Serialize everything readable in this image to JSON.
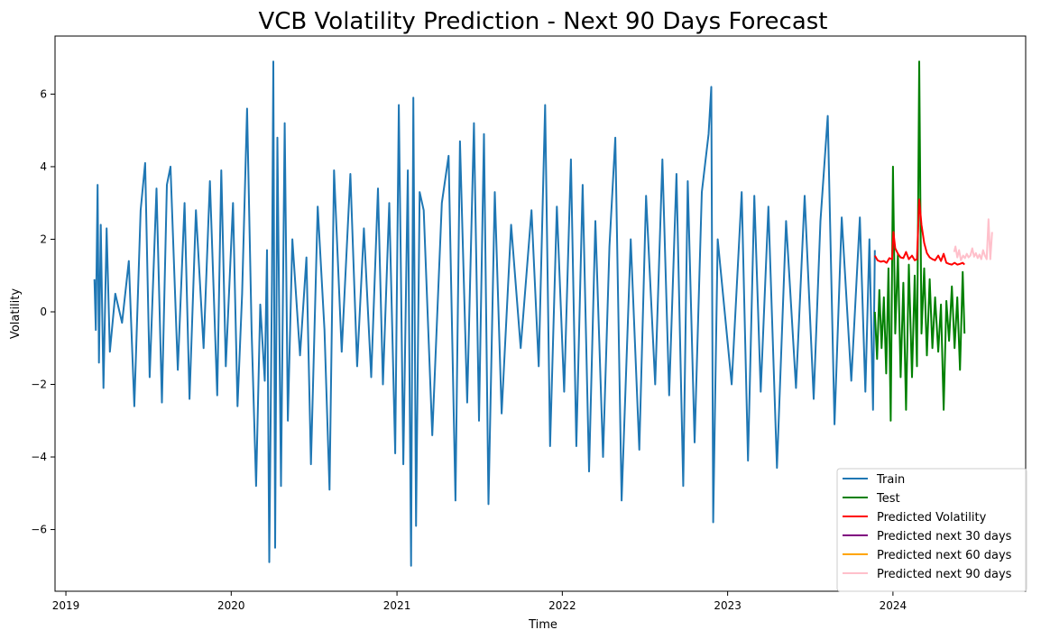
{
  "chart_data": {
    "type": "line",
    "title": "VCB Volatility Prediction - Next 90 Days Forecast",
    "xlabel": "Time",
    "ylabel": "Volatility",
    "xlim": [
      "2018-12-08",
      "2024-10-20"
    ],
    "ylim": [
      -7.7,
      7.6
    ],
    "x_ticks": [
      "2019-01-01",
      "2020-01-01",
      "2021-01-01",
      "2022-01-01",
      "2023-01-01",
      "2024-01-01"
    ],
    "x_tick_labels": [
      "2019",
      "2020",
      "2021",
      "2022",
      "2023",
      "2024"
    ],
    "y_ticks": [
      -6,
      -4,
      -2,
      0,
      2,
      4,
      6
    ],
    "y_tick_labels": [
      "−6",
      "−4",
      "−2",
      "0",
      "2",
      "4",
      "6"
    ],
    "grid": false,
    "legend_position": "lower-right",
    "series": [
      {
        "name": "Train",
        "color": "#1f77b4",
        "points": [
          [
            "2019-03-05",
            0.9
          ],
          [
            "2019-03-08",
            -0.5
          ],
          [
            "2019-03-12",
            3.5
          ],
          [
            "2019-03-15",
            -1.4
          ],
          [
            "2019-03-19",
            2.4
          ],
          [
            "2019-03-25",
            -2.1
          ],
          [
            "2019-04-01",
            2.3
          ],
          [
            "2019-04-08",
            -1.1
          ],
          [
            "2019-04-20",
            0.5
          ],
          [
            "2019-05-05",
            -0.3
          ],
          [
            "2019-05-20",
            1.4
          ],
          [
            "2019-06-01",
            -2.6
          ],
          [
            "2019-06-15",
            2.8
          ],
          [
            "2019-06-25",
            4.1
          ],
          [
            "2019-07-05",
            -1.8
          ],
          [
            "2019-07-20",
            3.4
          ],
          [
            "2019-08-01",
            -2.5
          ],
          [
            "2019-08-12",
            3.5
          ],
          [
            "2019-08-20",
            4.0
          ],
          [
            "2019-09-05",
            -1.6
          ],
          [
            "2019-09-20",
            3.0
          ],
          [
            "2019-10-01",
            -2.4
          ],
          [
            "2019-10-15",
            2.8
          ],
          [
            "2019-11-01",
            -1.0
          ],
          [
            "2019-11-15",
            3.6
          ],
          [
            "2019-12-01",
            -2.3
          ],
          [
            "2019-12-10",
            3.9
          ],
          [
            "2019-12-20",
            -1.5
          ],
          [
            "2020-01-05",
            3.0
          ],
          [
            "2020-01-15",
            -2.6
          ],
          [
            "2020-01-25",
            0.5
          ],
          [
            "2020-02-05",
            5.6
          ],
          [
            "2020-02-15",
            -0.5
          ],
          [
            "2020-02-25",
            -4.8
          ],
          [
            "2020-03-05",
            0.2
          ],
          [
            "2020-03-15",
            -1.9
          ],
          [
            "2020-03-20",
            1.7
          ],
          [
            "2020-03-25",
            -6.9
          ],
          [
            "2020-03-31",
            0.9
          ],
          [
            "2020-04-03",
            6.9
          ],
          [
            "2020-04-07",
            -6.5
          ],
          [
            "2020-04-12",
            4.8
          ],
          [
            "2020-04-20",
            -4.8
          ],
          [
            "2020-04-28",
            5.2
          ],
          [
            "2020-05-05",
            -3.0
          ],
          [
            "2020-05-15",
            2.0
          ],
          [
            "2020-06-01",
            -1.2
          ],
          [
            "2020-06-15",
            1.5
          ],
          [
            "2020-06-25",
            -4.2
          ],
          [
            "2020-07-10",
            2.9
          ],
          [
            "2020-07-25",
            -0.5
          ],
          [
            "2020-08-05",
            -4.9
          ],
          [
            "2020-08-15",
            3.9
          ],
          [
            "2020-09-01",
            -1.1
          ],
          [
            "2020-09-20",
            3.8
          ],
          [
            "2020-10-05",
            -1.5
          ],
          [
            "2020-10-20",
            2.3
          ],
          [
            "2020-11-05",
            -1.8
          ],
          [
            "2020-11-20",
            3.4
          ],
          [
            "2020-12-01",
            -2.0
          ],
          [
            "2020-12-15",
            3.0
          ],
          [
            "2020-12-28",
            -3.9
          ],
          [
            "2021-01-05",
            5.7
          ],
          [
            "2021-01-15",
            -4.2
          ],
          [
            "2021-01-25",
            3.9
          ],
          [
            "2021-02-01",
            -7.0
          ],
          [
            "2021-02-06",
            5.9
          ],
          [
            "2021-02-12",
            -5.9
          ],
          [
            "2021-02-20",
            3.3
          ],
          [
            "2021-03-01",
            2.8
          ],
          [
            "2021-03-20",
            -3.4
          ],
          [
            "2021-04-10",
            3.0
          ],
          [
            "2021-04-25",
            4.3
          ],
          [
            "2021-05-10",
            -5.2
          ],
          [
            "2021-05-20",
            4.7
          ],
          [
            "2021-06-05",
            -2.5
          ],
          [
            "2021-06-20",
            5.2
          ],
          [
            "2021-07-01",
            -3.0
          ],
          [
            "2021-07-12",
            4.9
          ],
          [
            "2021-07-22",
            -5.3
          ],
          [
            "2021-08-05",
            3.3
          ],
          [
            "2021-08-20",
            -2.8
          ],
          [
            "2021-09-10",
            2.4
          ],
          [
            "2021-10-01",
            -1.0
          ],
          [
            "2021-10-25",
            2.8
          ],
          [
            "2021-11-10",
            -1.5
          ],
          [
            "2021-11-24",
            5.7
          ],
          [
            "2021-12-05",
            -3.7
          ],
          [
            "2021-12-20",
            2.9
          ],
          [
            "2022-01-05",
            -2.2
          ],
          [
            "2022-01-20",
            4.2
          ],
          [
            "2022-02-01",
            -3.7
          ],
          [
            "2022-02-15",
            3.5
          ],
          [
            "2022-03-01",
            -4.4
          ],
          [
            "2022-03-15",
            2.5
          ],
          [
            "2022-04-01",
            -4.0
          ],
          [
            "2022-04-15",
            1.8
          ],
          [
            "2022-04-28",
            4.8
          ],
          [
            "2022-05-12",
            -5.2
          ],
          [
            "2022-06-01",
            2.0
          ],
          [
            "2022-06-20",
            -3.8
          ],
          [
            "2022-07-05",
            3.2
          ],
          [
            "2022-07-25",
            -2.0
          ],
          [
            "2022-08-10",
            4.2
          ],
          [
            "2022-08-25",
            -2.3
          ],
          [
            "2022-09-10",
            3.8
          ],
          [
            "2022-09-25",
            -4.8
          ],
          [
            "2022-10-05",
            3.6
          ],
          [
            "2022-10-20",
            -3.6
          ],
          [
            "2022-11-05",
            3.3
          ],
          [
            "2022-11-20",
            4.9
          ],
          [
            "2022-11-26",
            6.2
          ],
          [
            "2022-11-30",
            -5.8
          ],
          [
            "2022-12-10",
            2.0
          ],
          [
            "2023-01-10",
            -2.0
          ],
          [
            "2023-02-01",
            3.3
          ],
          [
            "2023-02-15",
            -4.1
          ],
          [
            "2023-03-01",
            3.2
          ],
          [
            "2023-03-15",
            -2.2
          ],
          [
            "2023-04-01",
            2.9
          ],
          [
            "2023-04-20",
            -4.3
          ],
          [
            "2023-05-10",
            2.5
          ],
          [
            "2023-06-01",
            -2.1
          ],
          [
            "2023-06-20",
            3.2
          ],
          [
            "2023-07-10",
            -2.4
          ],
          [
            "2023-07-25",
            2.5
          ],
          [
            "2023-08-10",
            5.4
          ],
          [
            "2023-08-25",
            -3.1
          ],
          [
            "2023-09-10",
            2.6
          ],
          [
            "2023-10-01",
            -1.9
          ],
          [
            "2023-10-20",
            2.6
          ],
          [
            "2023-11-01",
            -2.2
          ],
          [
            "2023-11-10",
            2.0
          ],
          [
            "2023-11-18",
            -2.7
          ],
          [
            "2023-11-22",
            1.7
          ]
        ]
      },
      {
        "name": "Test",
        "color": "#008000",
        "points": [
          [
            "2023-11-22",
            0.0
          ],
          [
            "2023-11-27",
            -1.3
          ],
          [
            "2023-12-02",
            0.6
          ],
          [
            "2023-12-07",
            -1.0
          ],
          [
            "2023-12-12",
            0.4
          ],
          [
            "2023-12-17",
            -1.7
          ],
          [
            "2023-12-22",
            1.2
          ],
          [
            "2023-12-27",
            -3.0
          ],
          [
            "2024-01-01",
            4.0
          ],
          [
            "2024-01-06",
            -0.6
          ],
          [
            "2024-01-12",
            1.6
          ],
          [
            "2024-01-18",
            -1.8
          ],
          [
            "2024-01-24",
            0.8
          ],
          [
            "2024-01-30",
            -2.7
          ],
          [
            "2024-02-05",
            1.3
          ],
          [
            "2024-02-12",
            -1.8
          ],
          [
            "2024-02-18",
            1.0
          ],
          [
            "2024-02-23",
            -1.5
          ],
          [
            "2024-02-28",
            6.9
          ],
          [
            "2024-03-04",
            -0.6
          ],
          [
            "2024-03-10",
            1.2
          ],
          [
            "2024-03-16",
            -1.2
          ],
          [
            "2024-03-22",
            0.9
          ],
          [
            "2024-03-28",
            -1.0
          ],
          [
            "2024-04-03",
            0.4
          ],
          [
            "2024-04-10",
            -1.1
          ],
          [
            "2024-04-16",
            0.2
          ],
          [
            "2024-04-22",
            -2.7
          ],
          [
            "2024-04-28",
            0.3
          ],
          [
            "2024-05-04",
            -0.8
          ],
          [
            "2024-05-10",
            0.7
          ],
          [
            "2024-05-16",
            -1.0
          ],
          [
            "2024-05-22",
            0.4
          ],
          [
            "2024-05-28",
            -1.6
          ],
          [
            "2024-06-03",
            1.1
          ],
          [
            "2024-06-07",
            -0.6
          ]
        ]
      },
      {
        "name": "Predicted Volatility",
        "color": "#ff0000",
        "points": [
          [
            "2023-11-22",
            1.55
          ],
          [
            "2023-11-28",
            1.42
          ],
          [
            "2023-12-05",
            1.38
          ],
          [
            "2023-12-12",
            1.4
          ],
          [
            "2023-12-18",
            1.35
          ],
          [
            "2023-12-24",
            1.48
          ],
          [
            "2023-12-30",
            1.45
          ],
          [
            "2024-01-02",
            2.2
          ],
          [
            "2024-01-06",
            1.75
          ],
          [
            "2024-01-12",
            1.6
          ],
          [
            "2024-01-18",
            1.5
          ],
          [
            "2024-01-24",
            1.48
          ],
          [
            "2024-01-30",
            1.65
          ],
          [
            "2024-02-05",
            1.45
          ],
          [
            "2024-02-12",
            1.55
          ],
          [
            "2024-02-18",
            1.42
          ],
          [
            "2024-02-23",
            1.45
          ],
          [
            "2024-02-28",
            3.1
          ],
          [
            "2024-03-04",
            2.4
          ],
          [
            "2024-03-10",
            1.9
          ],
          [
            "2024-03-16",
            1.62
          ],
          [
            "2024-03-22",
            1.5
          ],
          [
            "2024-03-28",
            1.45
          ],
          [
            "2024-04-03",
            1.42
          ],
          [
            "2024-04-10",
            1.55
          ],
          [
            "2024-04-16",
            1.4
          ],
          [
            "2024-04-22",
            1.6
          ],
          [
            "2024-04-28",
            1.35
          ],
          [
            "2024-05-04",
            1.32
          ],
          [
            "2024-05-10",
            1.3
          ],
          [
            "2024-05-16",
            1.35
          ],
          [
            "2024-05-22",
            1.3
          ],
          [
            "2024-05-28",
            1.32
          ],
          [
            "2024-06-03",
            1.35
          ],
          [
            "2024-06-07",
            1.3
          ]
        ]
      },
      {
        "name": "Predicted next 30 days",
        "color": "#800080",
        "points": []
      },
      {
        "name": "Predicted next 60 days",
        "color": "#ffa500",
        "points": []
      },
      {
        "name": "Predicted next 90 days",
        "color": "#ffc0cb",
        "points": [
          [
            "2024-05-15",
            1.65
          ],
          [
            "2024-05-18",
            1.8
          ],
          [
            "2024-05-22",
            1.5
          ],
          [
            "2024-05-26",
            1.7
          ],
          [
            "2024-05-30",
            1.42
          ],
          [
            "2024-06-04",
            1.55
          ],
          [
            "2024-06-08",
            1.48
          ],
          [
            "2024-06-12",
            1.6
          ],
          [
            "2024-06-16",
            1.5
          ],
          [
            "2024-06-20",
            1.55
          ],
          [
            "2024-06-24",
            1.75
          ],
          [
            "2024-06-28",
            1.52
          ],
          [
            "2024-07-02",
            1.62
          ],
          [
            "2024-07-06",
            1.48
          ],
          [
            "2024-07-10",
            1.58
          ],
          [
            "2024-07-14",
            1.45
          ],
          [
            "2024-07-18",
            1.7
          ],
          [
            "2024-07-22",
            1.55
          ],
          [
            "2024-07-26",
            1.45
          ],
          [
            "2024-07-30",
            2.55
          ],
          [
            "2024-08-03",
            1.45
          ],
          [
            "2024-08-07",
            2.2
          ]
        ]
      }
    ]
  }
}
